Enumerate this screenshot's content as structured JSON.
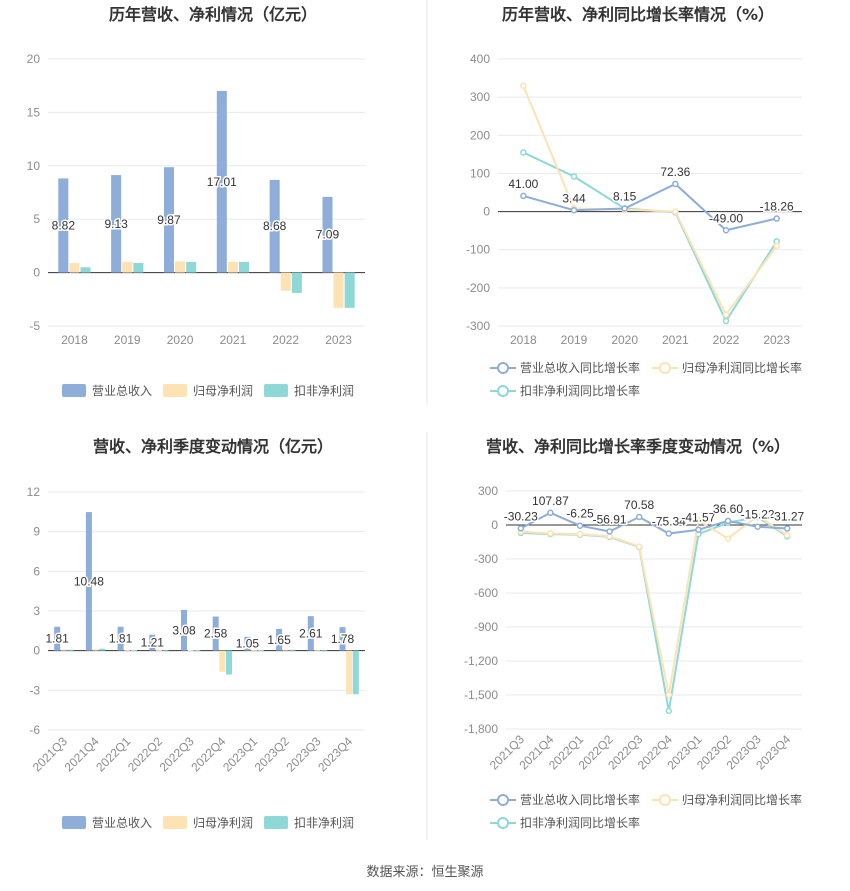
{
  "source": "数据来源：恒生聚源",
  "colors": {
    "revenue": "#8eadd9",
    "net_profit": "#fde2b4",
    "deducted_profit": "#8ed8d8",
    "grid": "#e6e9f0",
    "axis": "#333333"
  },
  "chart_data": [
    {
      "id": "annual-amounts",
      "type": "bar",
      "title": "历年营收、净利情况（亿元）",
      "categories": [
        "2018",
        "2019",
        "2020",
        "2021",
        "2022",
        "2023"
      ],
      "ylim": [
        -5,
        20
      ],
      "yticks": [
        20,
        15,
        10,
        5,
        0,
        -5
      ],
      "grid": true,
      "legend_position": "bottom",
      "series": [
        {
          "name": "营业总收入",
          "color": "#8eadd9",
          "values": [
            8.82,
            9.13,
            9.87,
            17.01,
            8.68,
            7.09
          ],
          "labels": [
            "8.82",
            "9.13",
            "9.87",
            "17.01",
            "8.68",
            "7.09"
          ]
        },
        {
          "name": "归母净利润",
          "color": "#fde2b4",
          "values": [
            0.9,
            1.0,
            1.05,
            1.0,
            -1.7,
            -3.3
          ]
        },
        {
          "name": "扣非净利润",
          "color": "#8ed8d8",
          "values": [
            0.5,
            0.9,
            1.0,
            1.0,
            -1.9,
            -3.3
          ]
        }
      ]
    },
    {
      "id": "annual-growth",
      "type": "line",
      "title": "历年营收、净利同比增长率情况（%）",
      "categories": [
        "2018",
        "2019",
        "2020",
        "2021",
        "2022",
        "2023"
      ],
      "ylim": [
        -300,
        400
      ],
      "yticks": [
        400,
        300,
        200,
        100,
        0,
        -100,
        -200,
        -300
      ],
      "grid": true,
      "legend_position": "bottom",
      "series": [
        {
          "name": "营业总收入同比增长率",
          "color": "#8eadd9",
          "values": [
            41.0,
            3.44,
            8.15,
            72.36,
            -49.0,
            -18.26
          ],
          "labels": [
            "41.00",
            "3.44",
            "8.15",
            "72.36",
            "-49.00",
            "-18.26"
          ]
        },
        {
          "name": "归母净利润同比增长率",
          "color": "#fde2b4",
          "values": [
            330,
            8,
            5,
            0,
            -270,
            -90
          ]
        },
        {
          "name": "扣非净利润同比增长率",
          "color": "#8ed8d8",
          "values": [
            155,
            92,
            8,
            -2,
            -287,
            -78
          ]
        }
      ]
    },
    {
      "id": "quarterly-amounts",
      "type": "bar",
      "title": "营收、净利季度变动情况（亿元）",
      "categories": [
        "2021Q3",
        "2021Q4",
        "2022Q1",
        "2022Q2",
        "2022Q3",
        "2022Q4",
        "2023Q1",
        "2023Q2",
        "2023Q3",
        "2023Q4"
      ],
      "ylim": [
        -6,
        12
      ],
      "yticks": [
        12,
        9,
        6,
        3,
        0,
        -3,
        -6
      ],
      "grid": true,
      "legend_position": "bottom",
      "series": [
        {
          "name": "营业总收入",
          "color": "#8eadd9",
          "values": [
            1.81,
            10.48,
            1.81,
            1.21,
            3.08,
            2.58,
            1.05,
            1.65,
            2.61,
            1.78
          ],
          "labels": [
            "1.81",
            "10.48",
            "1.81",
            "1.21",
            "3.08",
            "2.58",
            "1.05",
            "1.65",
            "2.61",
            "1.78"
          ]
        },
        {
          "name": "归母净利润",
          "color": "#fde2b4",
          "values": [
            0.08,
            0.1,
            0.06,
            0.04,
            0.05,
            -1.6,
            0.06,
            0.08,
            0.03,
            -3.3
          ]
        },
        {
          "name": "扣非净利润",
          "color": "#8ed8d8",
          "values": [
            0.07,
            0.15,
            0.05,
            0.02,
            0.04,
            -1.8,
            0.05,
            0.07,
            0.02,
            -3.3
          ]
        }
      ]
    },
    {
      "id": "quarterly-growth",
      "type": "line",
      "title": "营收、净利同比增长率季度变动情况（%）",
      "categories": [
        "2021Q3",
        "2021Q4",
        "2022Q1",
        "2022Q2",
        "2022Q3",
        "2022Q4",
        "2023Q1",
        "2023Q2",
        "2023Q3",
        "2023Q4"
      ],
      "ylim": [
        -1800,
        300
      ],
      "yticks": [
        300,
        0,
        -300,
        -600,
        -900,
        -1200,
        -1500,
        -1800
      ],
      "ytick_labels": [
        "300",
        "0",
        "-300",
        "-600",
        "-900",
        "-1,200",
        "-1,500",
        "-1,800"
      ],
      "grid": true,
      "legend_position": "bottom",
      "series": [
        {
          "name": "营业总收入同比增长率",
          "color": "#8eadd9",
          "values": [
            -30.23,
            107.87,
            -6.25,
            -56.91,
            70.58,
            -75.34,
            -41.57,
            36.6,
            -15.22,
            -31.27
          ],
          "labels": [
            "-30.23",
            "107.87",
            "-6.25",
            "-56.91",
            "70.58",
            "-75.34",
            "-41.57",
            "36.60",
            "-15.22",
            "-31.27"
          ]
        },
        {
          "name": "归母净利润同比增长率",
          "color": "#fde2b4",
          "values": [
            -60,
            -75,
            -80,
            -100,
            -190,
            -1500,
            40,
            -120,
            80,
            -90
          ]
        },
        {
          "name": "扣非净利润同比增长率",
          "color": "#8ed8d8",
          "values": [
            -70,
            -80,
            -85,
            -105,
            -195,
            -1640,
            -80,
            20,
            70,
            -100
          ]
        }
      ]
    }
  ]
}
